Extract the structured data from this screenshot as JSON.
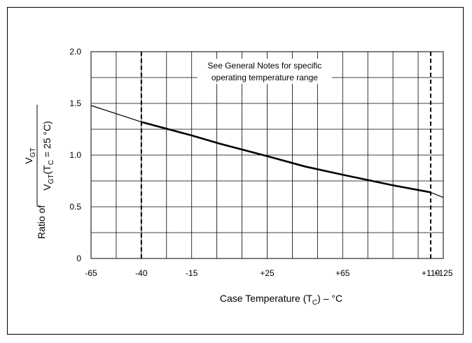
{
  "chart_data": {
    "type": "line",
    "x_tick_labels": [
      "-65",
      "-40",
      "-15",
      "+25",
      "+65",
      "+110",
      "+125"
    ],
    "y_tick_labels": [
      "0",
      "0.5",
      "1.0",
      "1.5",
      "2.0"
    ],
    "xlabel": {
      "main": "Case Temperature (T",
      "sub": "C",
      "rest": ") – °C"
    },
    "ylabel": {
      "ratio_of": "Ratio of",
      "numerator_main": "V",
      "numerator_sub": "GT",
      "denominator_main": "V",
      "denominator_sub": "GT",
      "denominator_paren": "(T",
      "denominator_paren_sub": "C",
      "denominator_rest": " = 25 °C)"
    },
    "annotation": {
      "line1": "See General Notes for specific",
      "line2": "operating temperature range"
    },
    "xlim": [
      -65,
      125
    ],
    "ylim": [
      0,
      2.0
    ],
    "grid": true,
    "operating_range_markers": [
      -40,
      110
    ],
    "series": [
      {
        "x": [
          -65,
          -40,
          -15,
          0,
          25,
          45,
          65,
          90,
          110,
          125
        ],
        "y": [
          1.48,
          1.32,
          1.19,
          1.11,
          0.99,
          0.89,
          0.81,
          0.71,
          0.64,
          0.59
        ]
      }
    ]
  }
}
